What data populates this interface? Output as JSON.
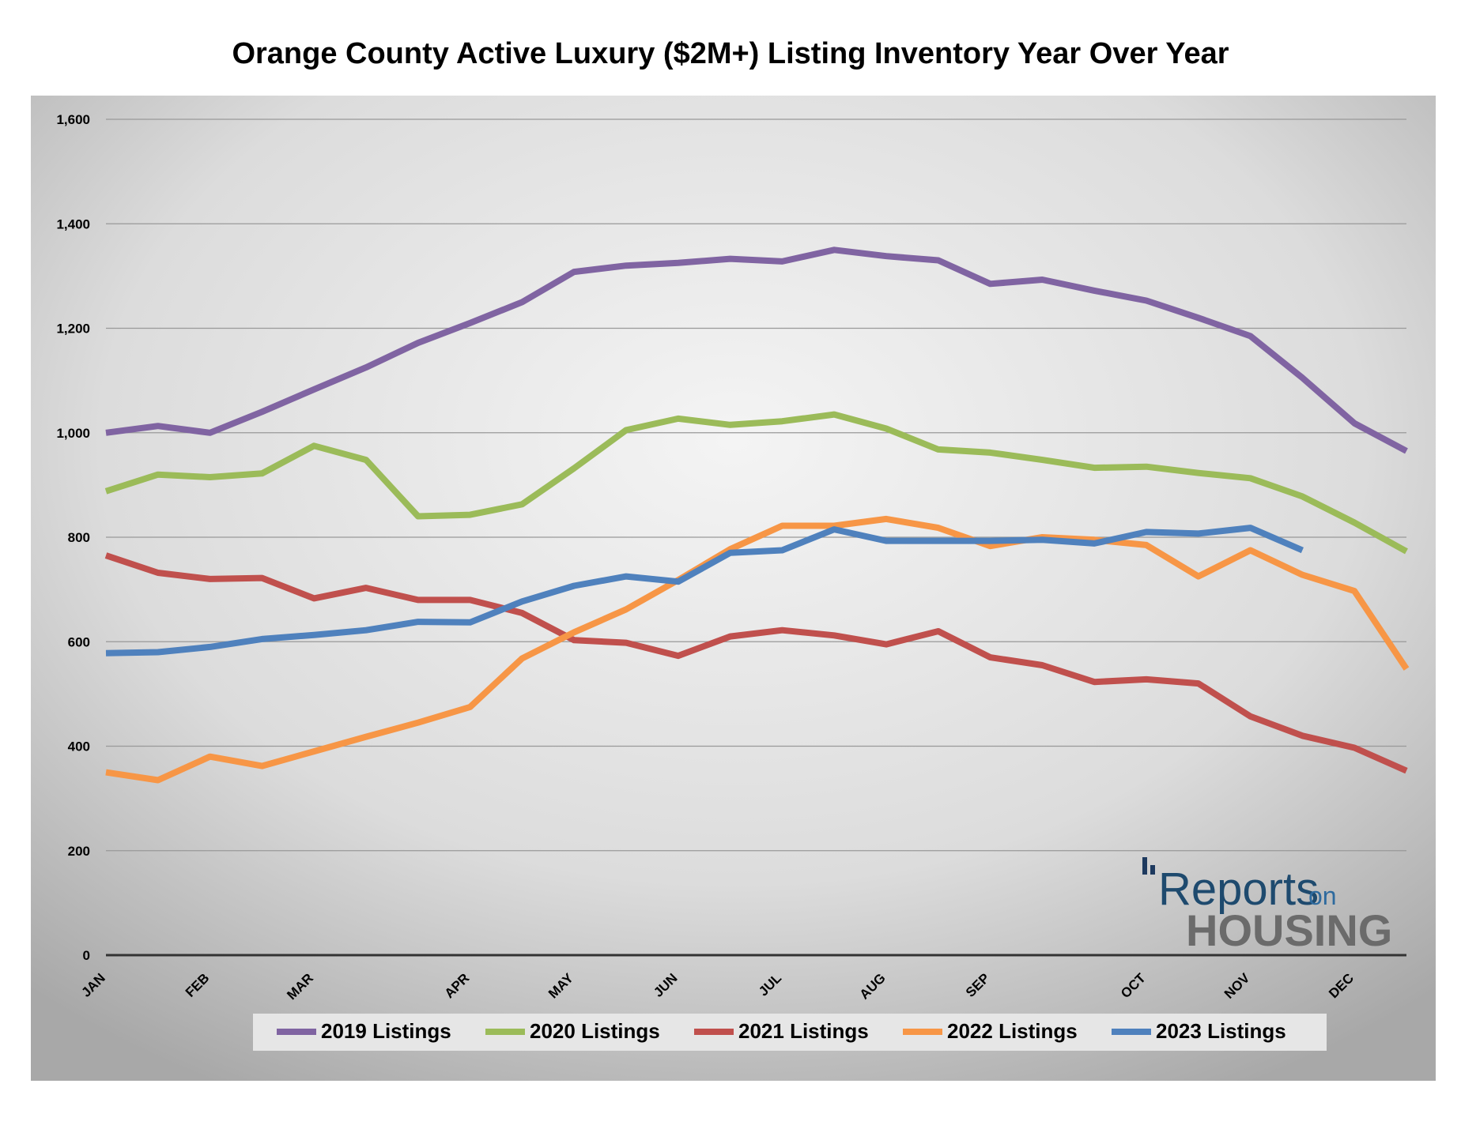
{
  "chart_data": {
    "type": "line",
    "title": "Orange County Active Luxury ($2M+) Listing Inventory Year Over Year",
    "categories": [
      "JAN",
      null,
      "FEB",
      null,
      "MAR",
      null,
      null,
      "APR",
      null,
      "MAY",
      null,
      "JUN",
      null,
      "JUL",
      null,
      "AUG",
      null,
      "SEP",
      null,
      null,
      "OCT",
      null,
      "NOV",
      null,
      "DEC",
      null
    ],
    "series": [
      {
        "name": "2019 Listings",
        "color": "#8064a2",
        "values": [
          1000,
          1013,
          1000,
          1040,
          1083,
          1125,
          1172,
          1210,
          1250,
          1308,
          1320,
          1325,
          1333,
          1328,
          1350,
          1338,
          1330,
          1285,
          1293,
          1272,
          1253,
          1220,
          1185,
          1105,
          1018,
          965
        ]
      },
      {
        "name": "2020 Listings",
        "color": "#9bbb59",
        "values": [
          888,
          920,
          915,
          922,
          975,
          948,
          840,
          843,
          863,
          932,
          1005,
          1027,
          1015,
          1022,
          1035,
          1008,
          968,
          962,
          948,
          933,
          935,
          923,
          913,
          878,
          828,
          773
        ]
      },
      {
        "name": "2021 Listings",
        "color": "#c0504d",
        "values": [
          765,
          732,
          720,
          722,
          683,
          703,
          680,
          680,
          655,
          603,
          598,
          573,
          610,
          622,
          612,
          595,
          620,
          570,
          555,
          523,
          528,
          520,
          457,
          420,
          397,
          353
        ]
      },
      {
        "name": "2022 Listings",
        "color": "#f79646",
        "values": [
          350,
          335,
          380,
          362,
          390,
          418,
          445,
          475,
          568,
          618,
          662,
          718,
          777,
          822,
          822,
          835,
          818,
          783,
          800,
          795,
          785,
          725,
          775,
          728,
          697,
          548
        ]
      },
      {
        "name": "2023 Listings",
        "color": "#4f81bd",
        "values": [
          578,
          580,
          590,
          605,
          613,
          622,
          638,
          637,
          677,
          707,
          725,
          715,
          770,
          775,
          815,
          793,
          793,
          793,
          795,
          788,
          810,
          807,
          818,
          775,
          null,
          null
        ]
      }
    ],
    "ylim": [
      0,
      1600
    ],
    "yticks": [
      0,
      200,
      400,
      600,
      800,
      {
        "value": 1000,
        "label": "1,000"
      },
      {
        "value": 1200,
        "label": "1,200"
      },
      {
        "value": 1400,
        "label": "1,400"
      },
      {
        "value": 1600,
        "label": "1,600"
      }
    ],
    "grid": true,
    "legend": "bottom",
    "logo": {
      "word": "Reports",
      "small": "on",
      "big": "HOUSING"
    }
  }
}
